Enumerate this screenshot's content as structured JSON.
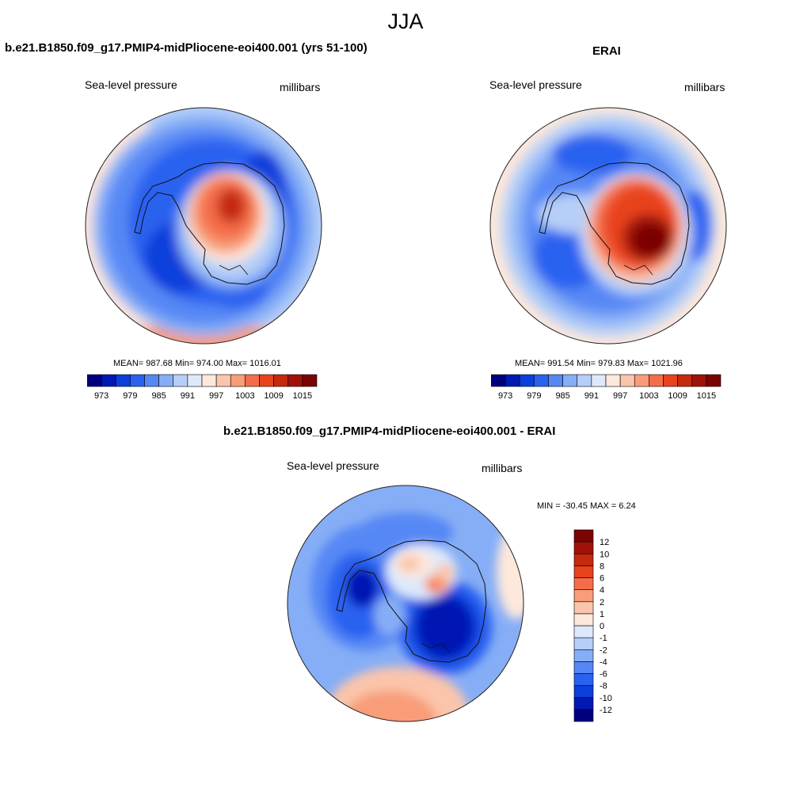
{
  "figure": {
    "season_title": "JJA",
    "panels": {
      "model": {
        "title": "b.e21.B1850.f09_g17.PMIP4-midPliocene-eoi400.001 (yrs 51-100)",
        "left_label": "Sea-level pressure",
        "right_label": "millibars",
        "stats": "MEAN= 987.68  Min= 974.00  Max= 1016.01"
      },
      "obs": {
        "title": "ERAI",
        "left_label": "Sea-level pressure",
        "right_label": "millibars",
        "stats": "MEAN= 991.54  Min= 979.83  Max= 1021.96"
      },
      "diff": {
        "title": "b.e21.B1850.f09_g17.PMIP4-midPliocene-eoi400.001 - ERAI",
        "left_label": "Sea-level pressure",
        "right_label": "millibars",
        "stats": "MIN = -30.45 MAX =   6.24"
      }
    }
  },
  "chart_data": [
    {
      "type": "heatmap",
      "projection": "south-polar-stereographic",
      "title": "b.e21.B1850.f09_g17.PMIP4-midPliocene-eoi400.001 (yrs 51-100)",
      "variable": "Sea-level pressure",
      "units": "millibars",
      "mean": 987.68,
      "min": 974.0,
      "max": 1016.01,
      "colorbar": {
        "levels": [
          973,
          976,
          979,
          982,
          985,
          988,
          991,
          994,
          997,
          1000,
          1003,
          1006,
          1009,
          1012,
          1015
        ],
        "tick_labels": [
          "973",
          "979",
          "985",
          "991",
          "997",
          "1003",
          "1009",
          "1015"
        ],
        "colors": [
          "#00007f",
          "#0019b3",
          "#0a3fdc",
          "#2a62f0",
          "#5688f5",
          "#86aef6",
          "#b6cff8",
          "#dde9fa",
          "#fde8dc",
          "#fbc5ab",
          "#f89d78",
          "#f46d4a",
          "#e8431c",
          "#c42a0c",
          "#a01208",
          "#7a0403"
        ]
      }
    },
    {
      "type": "heatmap",
      "projection": "south-polar-stereographic",
      "title": "ERAI",
      "variable": "Sea-level pressure",
      "units": "millibars",
      "mean": 991.54,
      "min": 979.83,
      "max": 1021.96,
      "colorbar": {
        "levels": [
          973,
          976,
          979,
          982,
          985,
          988,
          991,
          994,
          997,
          1000,
          1003,
          1006,
          1009,
          1012,
          1015
        ],
        "tick_labels": [
          "973",
          "979",
          "985",
          "991",
          "997",
          "1003",
          "1009",
          "1015"
        ],
        "colors": [
          "#00007f",
          "#0019b3",
          "#0a3fdc",
          "#2a62f0",
          "#5688f5",
          "#86aef6",
          "#b6cff8",
          "#dde9fa",
          "#fde8dc",
          "#fbc5ab",
          "#f89d78",
          "#f46d4a",
          "#e8431c",
          "#c42a0c",
          "#a01208",
          "#7a0403"
        ]
      }
    },
    {
      "type": "heatmap",
      "projection": "south-polar-stereographic",
      "title": "b.e21.B1850.f09_g17.PMIP4-midPliocene-eoi400.001 - ERAI",
      "variable": "Sea-level pressure",
      "units": "millibars",
      "min": -30.45,
      "max": 6.24,
      "colorbar": {
        "levels": [
          -12,
          -10,
          -8,
          -6,
          -4,
          -2,
          -1,
          0,
          1,
          2,
          4,
          6,
          8,
          10,
          12
        ],
        "tick_labels": [
          "-12",
          "-10",
          "-8",
          "-6",
          "-4",
          "-2",
          "-1",
          "0",
          "1",
          "2",
          "4",
          "6",
          "8",
          "10",
          "12"
        ],
        "colors": [
          "#00007f",
          "#0019b3",
          "#0a3fdc",
          "#2a62f0",
          "#5688f5",
          "#86aef6",
          "#b6cff8",
          "#dde9fa",
          "#fde8dc",
          "#fbc5ab",
          "#f89d78",
          "#f46d4a",
          "#e8431c",
          "#c42a0c",
          "#a01208",
          "#7a0403"
        ]
      }
    }
  ]
}
